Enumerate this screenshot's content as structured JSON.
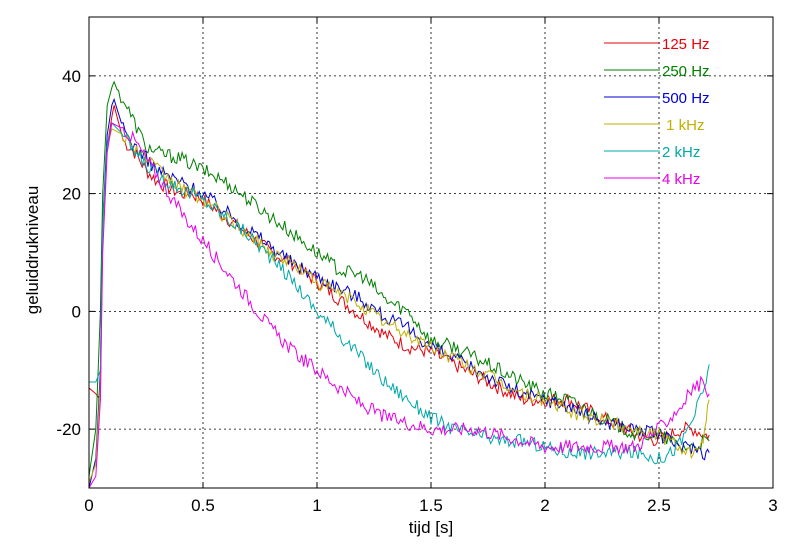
{
  "chart_data": {
    "type": "line",
    "xlabel": "tijd  [s]",
    "ylabel": "geluiddrukniveau",
    "xlim": [
      0,
      3
    ],
    "ylim": [
      -30,
      50
    ],
    "grid": true,
    "legend_position": "top-right",
    "x_ticks": [
      "0",
      "0.5",
      "1",
      "1.5",
      "2",
      "2.5",
      "3"
    ],
    "y_ticks": [
      "-20",
      "0",
      "20",
      "40"
    ],
    "x_tick_values": [
      0,
      0.5,
      1,
      1.5,
      2,
      2.5,
      3
    ],
    "y_tick_values": [
      -20,
      0,
      20,
      40
    ],
    "series": [
      {
        "name": "125 Hz",
        "color": "#e8000b",
        "x": [
          0.0,
          0.03,
          0.05,
          0.06,
          0.08,
          0.1,
          0.11,
          0.15,
          0.2,
          0.25,
          0.3,
          0.35,
          0.4,
          0.45,
          0.5,
          0.6,
          0.7,
          0.8,
          0.9,
          1.0,
          1.1,
          1.2,
          1.3,
          1.4,
          1.5,
          1.6,
          1.7,
          1.8,
          1.9,
          2.0,
          2.1,
          2.2,
          2.3,
          2.4,
          2.5,
          2.55,
          2.6,
          2.65,
          2.7,
          2.72
        ],
        "y": [
          -13,
          -14,
          -15,
          15,
          28,
          33,
          35,
          29,
          27,
          24,
          22,
          21,
          20,
          20,
          19,
          16,
          13,
          10,
          8,
          5,
          2,
          -1,
          -4,
          -6,
          -7,
          -9,
          -11,
          -13,
          -15,
          -15,
          -15,
          -17,
          -19,
          -21,
          -22,
          -21,
          -20,
          -20,
          -21,
          -21
        ]
      },
      {
        "name": "250 Hz",
        "color": "#007f00",
        "x": [
          0.0,
          0.03,
          0.05,
          0.06,
          0.08,
          0.1,
          0.11,
          0.13,
          0.15,
          0.2,
          0.25,
          0.3,
          0.4,
          0.5,
          0.6,
          0.7,
          0.8,
          0.9,
          1.0,
          1.1,
          1.2,
          1.3,
          1.4,
          1.5,
          1.6,
          1.7,
          1.8,
          1.9,
          2.0,
          2.1,
          2.2,
          2.3,
          2.4,
          2.5,
          2.55,
          2.6,
          2.65,
          2.7,
          2.72
        ],
        "y": [
          -28,
          -20,
          0,
          20,
          35,
          38,
          39,
          37,
          36,
          32,
          28,
          27,
          26,
          24,
          22,
          19,
          16,
          13,
          10,
          7,
          6,
          2,
          0,
          -5,
          -6,
          -8,
          -10,
          -12,
          -14,
          -15,
          -17,
          -19,
          -21,
          -21,
          -22,
          -23,
          -23,
          -22,
          -22
        ]
      },
      {
        "name": "500 Hz",
        "color": "#0000d0",
        "x": [
          0.0,
          0.03,
          0.05,
          0.06,
          0.08,
          0.1,
          0.11,
          0.15,
          0.2,
          0.25,
          0.3,
          0.35,
          0.4,
          0.5,
          0.6,
          0.7,
          0.8,
          0.9,
          1.0,
          1.1,
          1.2,
          1.3,
          1.4,
          1.5,
          1.6,
          1.7,
          1.8,
          1.9,
          2.0,
          2.1,
          2.2,
          2.3,
          2.4,
          2.5,
          2.55,
          2.6,
          2.65,
          2.7,
          2.72
        ],
        "y": [
          -30,
          -25,
          -10,
          15,
          30,
          35,
          36,
          31,
          28,
          26,
          24,
          23,
          22,
          20,
          17,
          14,
          11,
          8,
          6,
          4,
          2,
          -1,
          -3,
          -6,
          -8,
          -10,
          -12,
          -14,
          -15,
          -16,
          -18,
          -19,
          -20,
          -21,
          -22,
          -23,
          -23,
          -24,
          -24
        ]
      },
      {
        "name": " 1 kHz",
        "color": "#c0b000",
        "x": [
          0.0,
          0.03,
          0.05,
          0.06,
          0.08,
          0.1,
          0.15,
          0.2,
          0.25,
          0.3,
          0.4,
          0.5,
          0.6,
          0.7,
          0.8,
          0.9,
          1.0,
          1.1,
          1.2,
          1.3,
          1.4,
          1.5,
          1.6,
          1.7,
          1.8,
          1.9,
          2.0,
          2.1,
          2.2,
          2.3,
          2.4,
          2.5,
          2.55,
          2.6,
          2.65,
          2.68,
          2.7,
          2.72
        ],
        "y": [
          -29,
          -26,
          -12,
          12,
          28,
          31,
          30,
          28,
          26,
          24,
          21,
          19,
          16,
          13,
          10,
          8,
          5,
          3,
          1,
          -2,
          -4,
          -6,
          -8,
          -10,
          -12,
          -14,
          -15,
          -17,
          -18,
          -19,
          -20,
          -21,
          -22,
          -23,
          -24,
          -24,
          -20,
          -15
        ]
      },
      {
        "name": "2 kHz",
        "color": "#00a8a8",
        "x": [
          0.0,
          0.03,
          0.05,
          0.06,
          0.08,
          0.1,
          0.15,
          0.2,
          0.25,
          0.3,
          0.4,
          0.5,
          0.6,
          0.7,
          0.8,
          0.9,
          1.0,
          1.1,
          1.2,
          1.3,
          1.4,
          1.5,
          1.6,
          1.7,
          1.8,
          1.9,
          2.0,
          2.1,
          2.2,
          2.3,
          2.4,
          2.5,
          2.55,
          2.6,
          2.65,
          2.7,
          2.72
        ],
        "y": [
          -12,
          -12,
          -10,
          15,
          28,
          32,
          30,
          27,
          25,
          23,
          21,
          19,
          16,
          13,
          9,
          5,
          0,
          -4,
          -8,
          -12,
          -15,
          -18,
          -20,
          -21,
          -22,
          -22,
          -23,
          -24,
          -24,
          -24,
          -24,
          -25,
          -24,
          -22,
          -18,
          -13,
          -9
        ]
      },
      {
        "name": "4 kHz",
        "color": "#e800e8",
        "x": [
          0.0,
          0.03,
          0.05,
          0.06,
          0.08,
          0.1,
          0.15,
          0.2,
          0.25,
          0.3,
          0.35,
          0.4,
          0.5,
          0.6,
          0.7,
          0.8,
          0.9,
          1.0,
          1.1,
          1.2,
          1.3,
          1.4,
          1.5,
          1.6,
          1.7,
          1.8,
          1.9,
          2.0,
          2.1,
          2.2,
          2.3,
          2.4,
          2.5,
          2.55,
          2.6,
          2.65,
          2.7,
          2.72
        ],
        "y": [
          -30,
          -28,
          -15,
          10,
          27,
          32,
          31,
          29,
          26,
          23,
          20,
          17,
          12,
          7,
          2,
          -3,
          -7,
          -10,
          -13,
          -16,
          -18,
          -19,
          -20,
          -20,
          -20,
          -21,
          -22,
          -23,
          -23,
          -23,
          -23,
          -23,
          -20,
          -18,
          -16,
          -13,
          -12,
          -14
        ]
      }
    ]
  }
}
